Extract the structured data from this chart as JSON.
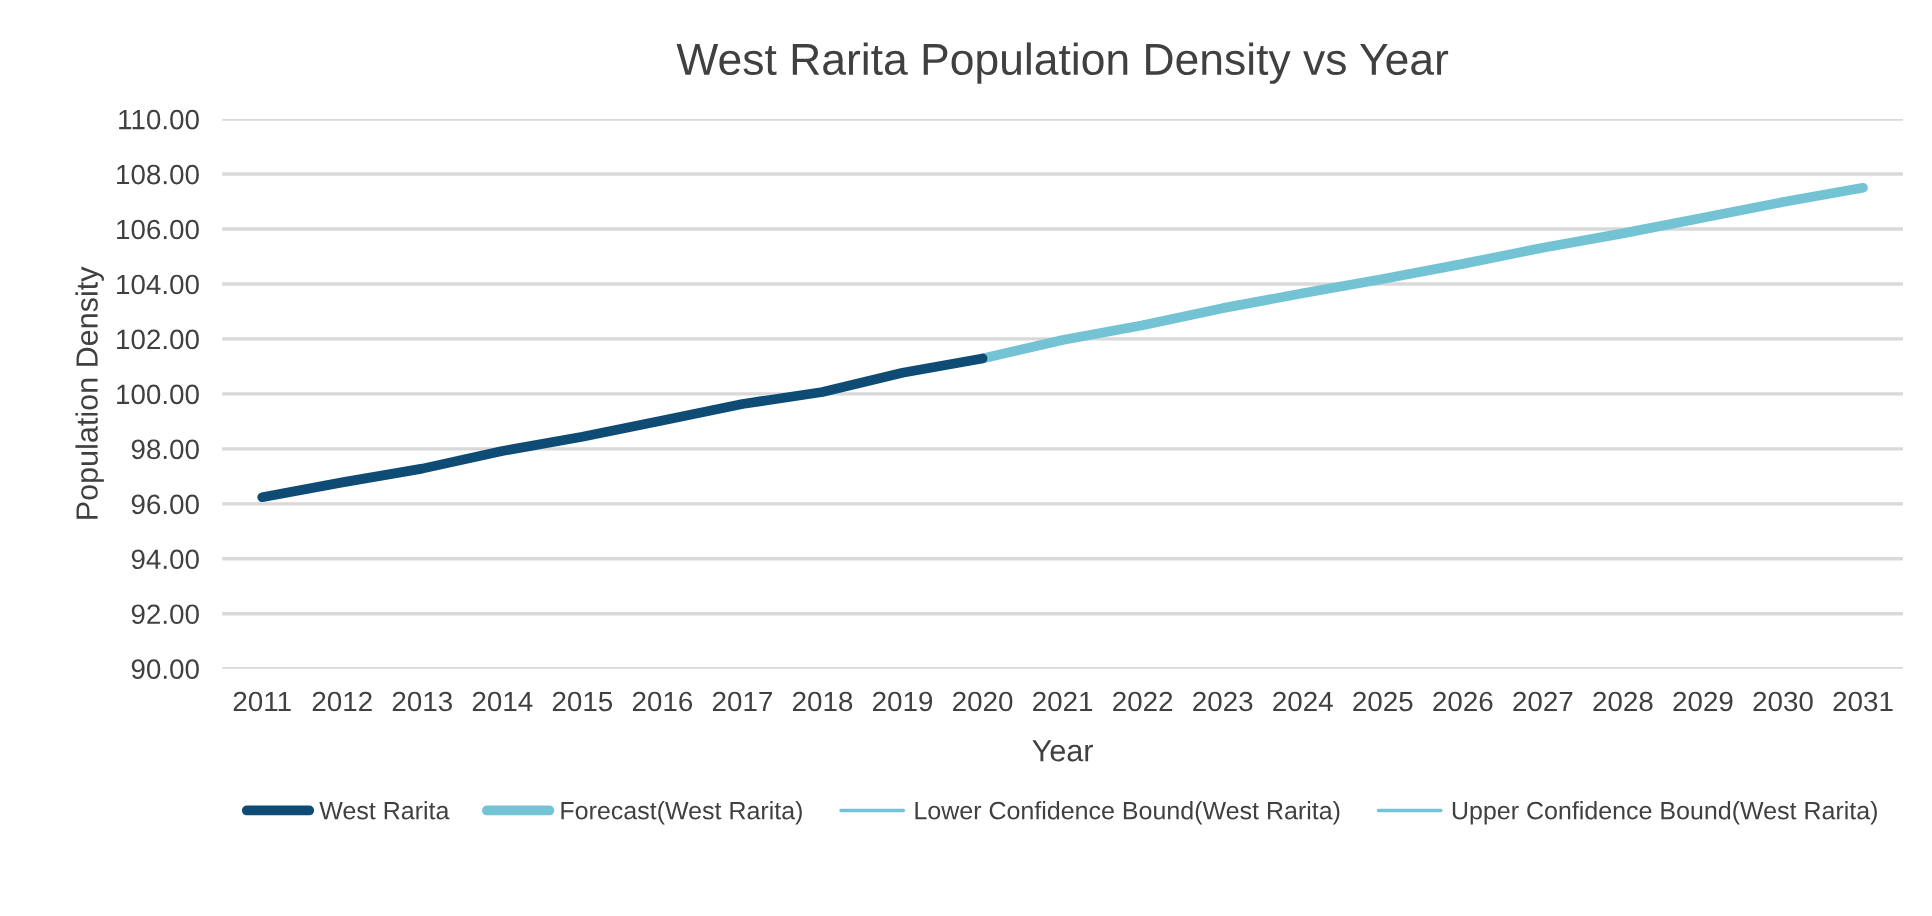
{
  "chart_data": {
    "type": "line",
    "title": "West Rarita Population Density vs Year",
    "xlabel": "Year",
    "ylabel": "Population Density",
    "categories": [
      "2011",
      "2012",
      "2013",
      "2014",
      "2015",
      "2016",
      "2017",
      "2018",
      "2019",
      "2020",
      "2021",
      "2022",
      "2023",
      "2024",
      "2025",
      "2026",
      "2027",
      "2028",
      "2029",
      "2030",
      "2031"
    ],
    "series": [
      {
        "name": "West Rarita",
        "color": "#0f4c75",
        "values": [
          96.24,
          96.78,
          97.28,
          97.92,
          98.44,
          99.03,
          99.63,
          100.07,
          100.77,
          101.29,
          null,
          null,
          null,
          null,
          null,
          null,
          null,
          null,
          null,
          null,
          null
        ]
      },
      {
        "name": "Forecast(West Rarita)",
        "color": "#74c3d5",
        "values": [
          null,
          null,
          null,
          null,
          null,
          null,
          null,
          null,
          null,
          101.29,
          101.96,
          102.5,
          103.12,
          103.66,
          104.18,
          104.73,
          105.32,
          105.84,
          106.41,
          106.98,
          107.5
        ]
      },
      {
        "name": "Lower Confidence Bound(West Rarita)",
        "color": "#74c3d5",
        "values": [
          null,
          null,
          null,
          null,
          null,
          null,
          null,
          null,
          null,
          null,
          null,
          null,
          null,
          null,
          null,
          null,
          null,
          null,
          null,
          null,
          null
        ]
      },
      {
        "name": "Upper Confidence Bound(West Rarita)",
        "color": "#74c3d5",
        "values": [
          null,
          null,
          null,
          null,
          null,
          null,
          null,
          null,
          null,
          null,
          null,
          null,
          null,
          null,
          null,
          null,
          null,
          null,
          null,
          null,
          null
        ]
      }
    ],
    "ylim": [
      90,
      110
    ],
    "yticks": [
      {
        "value": 90,
        "label": "90.00"
      },
      {
        "value": 92,
        "label": "92.00"
      },
      {
        "value": 94,
        "label": "94.00"
      },
      {
        "value": 96,
        "label": "96.00"
      },
      {
        "value": 98,
        "label": "98.00"
      },
      {
        "value": 100,
        "label": "100.00"
      },
      {
        "value": 102,
        "label": "102.00"
      },
      {
        "value": 104,
        "label": "104.00"
      },
      {
        "value": 106,
        "label": "106.00"
      },
      {
        "value": 108,
        "label": "108.00"
      },
      {
        "value": 110,
        "label": "110.00"
      }
    ],
    "grid": "y",
    "legend": "bottom",
    "marker": "none",
    "line_style": "solid"
  }
}
